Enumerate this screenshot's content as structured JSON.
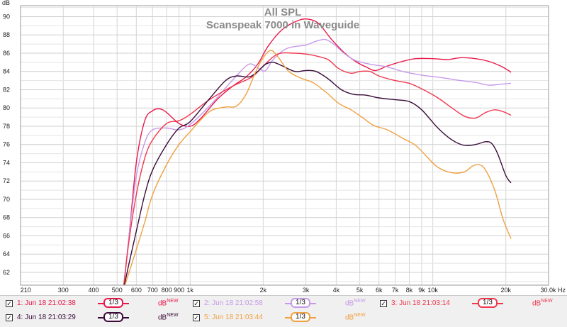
{
  "chart_data": {
    "type": "line",
    "title": "All SPL",
    "subtitle": "Scanspeak 7000 in Waveguide",
    "ylabel": "dB",
    "xlabel": "",
    "x_scale": "log",
    "xlim": [
      200,
      30000
    ],
    "ylim": [
      60.6,
      91.2
    ],
    "grid": true,
    "x_tick_labels": [
      {
        "v": 210,
        "t": "210"
      },
      {
        "v": 300,
        "t": "300"
      },
      {
        "v": 400,
        "t": "400"
      },
      {
        "v": 500,
        "t": "500"
      },
      {
        "v": 600,
        "t": "600"
      },
      {
        "v": 700,
        "t": "700"
      },
      {
        "v": 800,
        "t": "800"
      },
      {
        "v": 900,
        "t": "900"
      },
      {
        "v": 1000,
        "t": "1k"
      },
      {
        "v": 2000,
        "t": "2k"
      },
      {
        "v": 3000,
        "t": "3k"
      },
      {
        "v": 4000,
        "t": "4k"
      },
      {
        "v": 5000,
        "t": "5k"
      },
      {
        "v": 6000,
        "t": "6k"
      },
      {
        "v": 7000,
        "t": "7k"
      },
      {
        "v": 8000,
        "t": "8k"
      },
      {
        "v": 9000,
        "t": "9k"
      },
      {
        "v": 10000,
        "t": "10k"
      },
      {
        "v": 20000,
        "t": "20k"
      },
      {
        "v": 30000,
        "t": "30.0k Hz"
      }
    ],
    "y_ticks": [
      62,
      64,
      66,
      68,
      70,
      72,
      74,
      76,
      78,
      80,
      82,
      84,
      86,
      88,
      90
    ],
    "series": [
      {
        "name": "1: Jun 18 21:02:38",
        "color": "#e8194a",
        "points": [
          [
            530,
            60
          ],
          [
            560,
            66
          ],
          [
            600,
            74
          ],
          [
            650,
            78.6
          ],
          [
            700,
            79.7
          ],
          [
            750,
            79.9
          ],
          [
            800,
            79.5
          ],
          [
            900,
            78.3
          ],
          [
            1000,
            78.0
          ],
          [
            1100,
            78.8
          ],
          [
            1300,
            81.0
          ],
          [
            1500,
            82.4
          ],
          [
            1700,
            83.4
          ],
          [
            1900,
            84.8
          ],
          [
            2100,
            86.8
          ],
          [
            2400,
            88.6
          ],
          [
            2800,
            89.6
          ],
          [
            3100,
            89.7
          ],
          [
            3400,
            89.2
          ],
          [
            3800,
            87.6
          ],
          [
            4300,
            86.1
          ],
          [
            4800,
            85.1
          ],
          [
            5300,
            84.5
          ],
          [
            5800,
            84.1
          ],
          [
            6500,
            84.6
          ],
          [
            7500,
            85.1
          ],
          [
            8500,
            85.4
          ],
          [
            10000,
            85.4
          ],
          [
            11500,
            85.3
          ],
          [
            13000,
            85.5
          ],
          [
            15000,
            85.4
          ],
          [
            17000,
            85.1
          ],
          [
            19000,
            84.6
          ],
          [
            20500,
            84.1
          ],
          [
            21000,
            83.9
          ]
        ]
      },
      {
        "name": "2: Jun 18 21:02:58",
        "color": "#c69ae8",
        "points": [
          [
            530,
            60
          ],
          [
            560,
            66
          ],
          [
            600,
            72.5
          ],
          [
            650,
            76.2
          ],
          [
            700,
            77.6
          ],
          [
            800,
            77.8
          ],
          [
            900,
            77.6
          ],
          [
            1000,
            78.2
          ],
          [
            1200,
            80.2
          ],
          [
            1400,
            82.2
          ],
          [
            1550,
            83.5
          ],
          [
            1700,
            84.6
          ],
          [
            1800,
            84.8
          ],
          [
            1950,
            84.2
          ],
          [
            2050,
            84.1
          ],
          [
            2200,
            85.3
          ],
          [
            2500,
            86.5
          ],
          [
            3000,
            86.9
          ],
          [
            3300,
            87.3
          ],
          [
            3600,
            87.5
          ],
          [
            3900,
            87.0
          ],
          [
            4300,
            86.0
          ],
          [
            4800,
            85.2
          ],
          [
            5500,
            84.8
          ],
          [
            6500,
            84.5
          ],
          [
            7500,
            84.0
          ],
          [
            9000,
            83.6
          ],
          [
            11000,
            83.3
          ],
          [
            13000,
            83.0
          ],
          [
            15000,
            82.8
          ],
          [
            17000,
            82.5
          ],
          [
            19000,
            82.6
          ],
          [
            21000,
            82.7
          ]
        ]
      },
      {
        "name": "3: Jun 18 21:03:14",
        "color": "#f0374e",
        "points": [
          [
            530,
            60
          ],
          [
            560,
            65.5
          ],
          [
            600,
            70.5
          ],
          [
            650,
            74.5
          ],
          [
            700,
            76.5
          ],
          [
            800,
            78.3
          ],
          [
            900,
            78.6
          ],
          [
            1000,
            79.3
          ],
          [
            1200,
            80.9
          ],
          [
            1500,
            82.4
          ],
          [
            1800,
            83.4
          ],
          [
            2000,
            84.6
          ],
          [
            2300,
            85.9
          ],
          [
            2700,
            86.0
          ],
          [
            3000,
            85.9
          ],
          [
            3300,
            85.7
          ],
          [
            3700,
            85.3
          ],
          [
            4100,
            84.3
          ],
          [
            4600,
            83.8
          ],
          [
            5000,
            84.0
          ],
          [
            5500,
            84.0
          ],
          [
            6000,
            83.5
          ],
          [
            7000,
            83.0
          ],
          [
            8000,
            82.7
          ],
          [
            9000,
            82.1
          ],
          [
            10500,
            81.1
          ],
          [
            12000,
            80.0
          ],
          [
            13500,
            79.1
          ],
          [
            15000,
            78.9
          ],
          [
            16500,
            79.5
          ],
          [
            18000,
            79.8
          ],
          [
            19500,
            79.6
          ],
          [
            21000,
            79.2
          ]
        ]
      },
      {
        "name": "4: Jun 18 21:03:29",
        "color": "#3a0c3a",
        "points": [
          [
            530,
            60
          ],
          [
            560,
            63
          ],
          [
            600,
            66.5
          ],
          [
            650,
            70.5
          ],
          [
            700,
            73.2
          ],
          [
            800,
            76.0
          ],
          [
            900,
            77.8
          ],
          [
            1000,
            78.5
          ],
          [
            1200,
            81.0
          ],
          [
            1400,
            83.0
          ],
          [
            1550,
            83.5
          ],
          [
            1750,
            83.4
          ],
          [
            1900,
            84.0
          ],
          [
            2050,
            84.8
          ],
          [
            2200,
            85.0
          ],
          [
            2400,
            84.6
          ],
          [
            2700,
            84.0
          ],
          [
            3000,
            84.1
          ],
          [
            3300,
            84.0
          ],
          [
            3700,
            83.2
          ],
          [
            4200,
            82.0
          ],
          [
            4700,
            81.5
          ],
          [
            5300,
            81.4
          ],
          [
            6000,
            81.1
          ],
          [
            7000,
            80.9
          ],
          [
            8000,
            80.7
          ],
          [
            9000,
            79.8
          ],
          [
            10500,
            77.8
          ],
          [
            12000,
            76.5
          ],
          [
            13500,
            75.9
          ],
          [
            15000,
            76.0
          ],
          [
            16500,
            76.3
          ],
          [
            17500,
            76.1
          ],
          [
            18500,
            75.0
          ],
          [
            20000,
            72.6
          ],
          [
            21000,
            71.8
          ]
        ]
      },
      {
        "name": "5: Jun 18 21:03:44",
        "color": "#f0a040",
        "points": [
          [
            530,
            60
          ],
          [
            560,
            62
          ],
          [
            600,
            64.5
          ],
          [
            650,
            67.5
          ],
          [
            700,
            70.5
          ],
          [
            800,
            73.8
          ],
          [
            900,
            76.0
          ],
          [
            1000,
            77.4
          ],
          [
            1200,
            79.6
          ],
          [
            1400,
            80.1
          ],
          [
            1550,
            80.2
          ],
          [
            1700,
            81.5
          ],
          [
            1850,
            83.8
          ],
          [
            2000,
            85.5
          ],
          [
            2150,
            86.3
          ],
          [
            2300,
            85.6
          ],
          [
            2550,
            84.0
          ],
          [
            2900,
            83.2
          ],
          [
            3200,
            82.8
          ],
          [
            3600,
            81.8
          ],
          [
            4100,
            80.5
          ],
          [
            4600,
            79.8
          ],
          [
            5100,
            79.0
          ],
          [
            5700,
            78.1
          ],
          [
            6500,
            77.6
          ],
          [
            7500,
            76.7
          ],
          [
            8500,
            75.9
          ],
          [
            9500,
            74.6
          ],
          [
            10500,
            73.5
          ],
          [
            12000,
            72.9
          ],
          [
            13500,
            73.0
          ],
          [
            14500,
            73.6
          ],
          [
            15500,
            73.8
          ],
          [
            16500,
            73.2
          ],
          [
            18000,
            71.0
          ],
          [
            19500,
            67.8
          ],
          [
            21000,
            65.7
          ]
        ]
      }
    ]
  },
  "legend": [
    {
      "label": "1: Jun 18 21:02:38",
      "color": "#e8194a",
      "checked": "✓",
      "smoothing": "1/3",
      "unit": "dB",
      "unit_sup": "NEW"
    },
    {
      "label": "2: Jun 18 21:02:58",
      "color": "#c69ae8",
      "checked": "✓",
      "smoothing": "1/3",
      "unit": "dB",
      "unit_sup": "NEW"
    },
    {
      "label": "3: Jun 18 21:03:14",
      "color": "#f0374e",
      "checked": "✓",
      "smoothing": "1/3",
      "unit": "dB",
      "unit_sup": "NEW"
    },
    {
      "label": "4: Jun 18 21:03:29",
      "color": "#3a0c3a",
      "checked": "✓",
      "smoothing": "1/3",
      "unit": "dB",
      "unit_sup": "NEW"
    },
    {
      "label": "5: Jun 18 21:03:44",
      "color": "#f0a040",
      "checked": "✓",
      "smoothing": "1/3",
      "unit": "dB",
      "unit_sup": "NEW"
    }
  ]
}
